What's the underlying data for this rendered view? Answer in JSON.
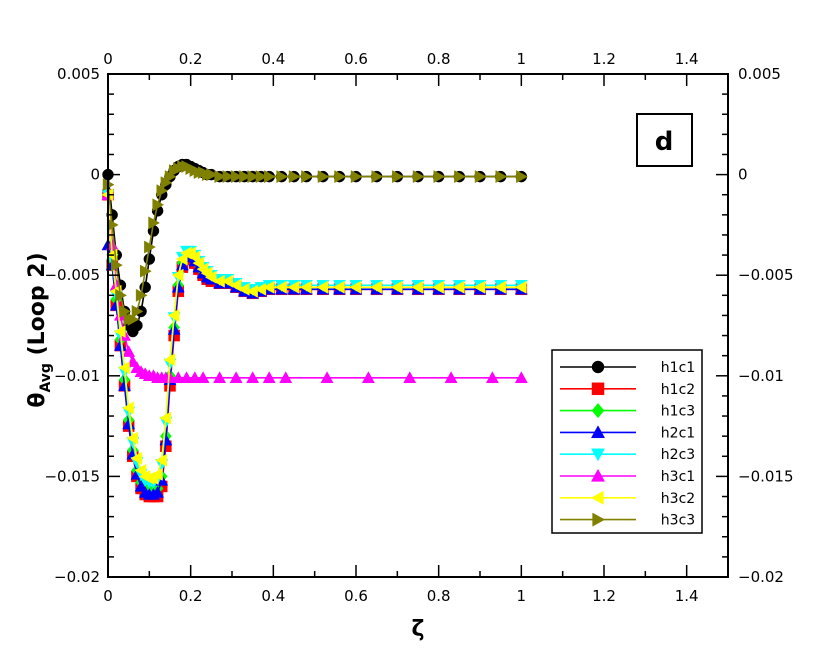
{
  "chart_data": {
    "type": "line",
    "panel_label": "d",
    "xlabel": "ζ",
    "ylabel_main": "θ",
    "ylabel_sub": "Avg",
    "ylabel_rest": " (Loop 2)",
    "xlim": [
      0,
      1.5
    ],
    "ylim": [
      -0.02,
      0.005
    ],
    "x_ticks": [
      0,
      0.2,
      0.4,
      0.6,
      0.8,
      1,
      1.2,
      1.4
    ],
    "x_tick_labels": [
      "0",
      "0.2",
      "0.4",
      "0.6",
      "0.8",
      "1",
      "1.2",
      "1.4"
    ],
    "y_ticks": [
      -0.02,
      -0.015,
      -0.01,
      -0.005,
      0,
      0.005
    ],
    "y_tick_labels": [
      "−0.02",
      "−0.015",
      "−0.01",
      "−0.005",
      "0",
      "0.005"
    ],
    "y_tick_labels_right": [
      "−0.02",
      "−0.015",
      "−0.01",
      "−0.005",
      "0",
      "0.005"
    ],
    "grid": false,
    "legend_position": "bottom-right",
    "series": [
      {
        "name": "h1c1",
        "color": "#000000",
        "marker": "circle",
        "x": [
          0.0,
          0.01,
          0.02,
          0.03,
          0.04,
          0.05,
          0.06,
          0.07,
          0.08,
          0.09,
          0.1,
          0.11,
          0.12,
          0.13,
          0.14,
          0.15,
          0.16,
          0.17,
          0.18,
          0.19,
          0.2,
          0.21,
          0.22,
          0.23,
          0.24,
          0.25,
          0.27,
          0.29,
          0.31,
          0.33,
          0.35,
          0.37,
          0.39,
          0.42,
          0.45,
          0.48,
          0.52,
          0.56,
          0.6,
          0.65,
          0.7,
          0.75,
          0.8,
          0.85,
          0.9,
          0.95,
          1.0
        ],
        "y": [
          0.0,
          -0.002,
          -0.004,
          -0.0055,
          -0.0068,
          -0.0075,
          -0.0078,
          -0.0075,
          -0.0068,
          -0.0056,
          -0.0042,
          -0.0028,
          -0.0018,
          -0.001,
          -0.0005,
          -0.0001,
          0.0002,
          0.0004,
          0.0005,
          0.0005,
          0.0004,
          0.0003,
          0.0002,
          0.0001,
          0.0,
          0.0,
          -0.0001,
          -0.0001,
          -0.0001,
          -0.0001,
          -0.0001,
          -0.0001,
          -0.0001,
          -0.0001,
          -0.0001,
          -0.0001,
          -0.0001,
          -0.0001,
          -0.0001,
          -0.0001,
          -0.0001,
          -0.0001,
          -0.0001,
          -0.0001,
          -0.0001,
          -0.0001,
          -0.0001
        ]
      },
      {
        "name": "h1c2",
        "color": "#ff0000",
        "marker": "square",
        "x": [
          0.0,
          0.01,
          0.02,
          0.03,
          0.04,
          0.05,
          0.06,
          0.07,
          0.08,
          0.09,
          0.1,
          0.11,
          0.12,
          0.13,
          0.14,
          0.15,
          0.16,
          0.17,
          0.18,
          0.19,
          0.2,
          0.21,
          0.22,
          0.23,
          0.24,
          0.25,
          0.27,
          0.29,
          0.31,
          0.33,
          0.35,
          0.37,
          0.39,
          0.42,
          0.45,
          0.48,
          0.52,
          0.56,
          0.6,
          0.65,
          0.7,
          0.75,
          0.8,
          0.85,
          0.9,
          0.95,
          1.0
        ],
        "y": [
          -0.001,
          -0.0045,
          -0.0065,
          -0.0085,
          -0.0105,
          -0.0125,
          -0.014,
          -0.015,
          -0.0156,
          -0.0159,
          -0.016,
          -0.016,
          -0.016,
          -0.0155,
          -0.0135,
          -0.0105,
          -0.008,
          -0.0058,
          -0.0046,
          -0.0042,
          -0.0042,
          -0.0044,
          -0.0047,
          -0.005,
          -0.0052,
          -0.0053,
          -0.0054,
          -0.0054,
          -0.0056,
          -0.0058,
          -0.0059,
          -0.0058,
          -0.0057,
          -0.0057,
          -0.0057,
          -0.0057,
          -0.0057,
          -0.0057,
          -0.0057,
          -0.0057,
          -0.0057,
          -0.0057,
          -0.0057,
          -0.0057,
          -0.0057,
          -0.0057,
          -0.0057
        ]
      },
      {
        "name": "h1c3",
        "color": "#00ff00",
        "marker": "diamond",
        "x": [
          0.0,
          0.01,
          0.02,
          0.03,
          0.04,
          0.05,
          0.06,
          0.07,
          0.08,
          0.09,
          0.1,
          0.11,
          0.12,
          0.13,
          0.14,
          0.15,
          0.16,
          0.17,
          0.18,
          0.19,
          0.2,
          0.21,
          0.22,
          0.23,
          0.24,
          0.25,
          0.27,
          0.29,
          0.31,
          0.33,
          0.35,
          0.37,
          0.39,
          0.42,
          0.45,
          0.48,
          0.52,
          0.56,
          0.6,
          0.65,
          0.7,
          0.75,
          0.8,
          0.85,
          0.9,
          0.95,
          1.0
        ],
        "y": [
          -0.001,
          -0.0042,
          -0.0062,
          -0.0082,
          -0.0102,
          -0.0122,
          -0.0137,
          -0.0147,
          -0.0153,
          -0.0156,
          -0.0157,
          -0.0157,
          -0.0156,
          -0.015,
          -0.013,
          -0.01,
          -0.0076,
          -0.0055,
          -0.0044,
          -0.004,
          -0.004,
          -0.0042,
          -0.0045,
          -0.0048,
          -0.005,
          -0.0051,
          -0.0053,
          -0.0053,
          -0.0055,
          -0.0057,
          -0.0058,
          -0.0057,
          -0.0056,
          -0.0056,
          -0.0056,
          -0.0056,
          -0.0056,
          -0.0056,
          -0.0056,
          -0.0056,
          -0.0056,
          -0.0056,
          -0.0056,
          -0.0056,
          -0.0056,
          -0.0056,
          -0.0056
        ]
      },
      {
        "name": "h2c1",
        "color": "#0000ff",
        "marker": "triangle-up",
        "x": [
          0.0,
          0.01,
          0.02,
          0.03,
          0.04,
          0.05,
          0.06,
          0.07,
          0.08,
          0.09,
          0.1,
          0.11,
          0.12,
          0.13,
          0.14,
          0.15,
          0.16,
          0.17,
          0.18,
          0.19,
          0.2,
          0.21,
          0.22,
          0.23,
          0.24,
          0.25,
          0.27,
          0.29,
          0.31,
          0.33,
          0.35,
          0.37,
          0.39,
          0.42,
          0.45,
          0.48,
          0.52,
          0.56,
          0.6,
          0.65,
          0.7,
          0.75,
          0.8,
          0.85,
          0.9,
          0.95,
          1.0
        ],
        "y": [
          -0.0035,
          -0.0045,
          -0.0065,
          -0.0085,
          -0.0105,
          -0.0124,
          -0.0139,
          -0.0149,
          -0.0155,
          -0.0158,
          -0.0159,
          -0.0159,
          -0.0158,
          -0.0152,
          -0.0132,
          -0.0102,
          -0.0077,
          -0.0056,
          -0.0045,
          -0.0041,
          -0.0041,
          -0.0043,
          -0.0046,
          -0.0049,
          -0.0051,
          -0.0052,
          -0.0054,
          -0.0054,
          -0.0056,
          -0.0058,
          -0.0059,
          -0.0058,
          -0.0057,
          -0.0057,
          -0.0057,
          -0.0057,
          -0.0057,
          -0.0057,
          -0.0057,
          -0.0057,
          -0.0057,
          -0.0057,
          -0.0057,
          -0.0057,
          -0.0057,
          -0.0057,
          -0.0057
        ]
      },
      {
        "name": "h2c3",
        "color": "#00ffff",
        "marker": "triangle-down",
        "x": [
          0.0,
          0.01,
          0.02,
          0.03,
          0.04,
          0.05,
          0.06,
          0.07,
          0.08,
          0.09,
          0.1,
          0.11,
          0.12,
          0.13,
          0.14,
          0.15,
          0.16,
          0.17,
          0.18,
          0.19,
          0.2,
          0.21,
          0.22,
          0.23,
          0.24,
          0.25,
          0.27,
          0.29,
          0.31,
          0.33,
          0.35,
          0.37,
          0.39,
          0.42,
          0.45,
          0.48,
          0.52,
          0.56,
          0.6,
          0.65,
          0.7,
          0.75,
          0.8,
          0.85,
          0.9,
          0.95,
          1.0
        ],
        "y": [
          -0.001,
          -0.0042,
          -0.006,
          -0.008,
          -0.0098,
          -0.0118,
          -0.0133,
          -0.0143,
          -0.0149,
          -0.0152,
          -0.0153,
          -0.0153,
          -0.0151,
          -0.0144,
          -0.0123,
          -0.0094,
          -0.0071,
          -0.0051,
          -0.0041,
          -0.0038,
          -0.0038,
          -0.004,
          -0.0043,
          -0.0046,
          -0.0048,
          -0.005,
          -0.0052,
          -0.0052,
          -0.0054,
          -0.0056,
          -0.0057,
          -0.0056,
          -0.0055,
          -0.0055,
          -0.0055,
          -0.0055,
          -0.0055,
          -0.0055,
          -0.0055,
          -0.0055,
          -0.0055,
          -0.0055,
          -0.0055,
          -0.0055,
          -0.0055,
          -0.0055,
          -0.0055
        ]
      },
      {
        "name": "h3c1",
        "color": "#ff00ff",
        "marker": "triangle-up",
        "x": [
          0.0,
          0.01,
          0.02,
          0.03,
          0.04,
          0.05,
          0.06,
          0.07,
          0.08,
          0.09,
          0.1,
          0.11,
          0.12,
          0.13,
          0.14,
          0.15,
          0.17,
          0.19,
          0.21,
          0.23,
          0.27,
          0.31,
          0.35,
          0.39,
          0.43,
          0.53,
          0.63,
          0.73,
          0.83,
          0.93,
          1.0
        ],
        "y": [
          -0.001,
          -0.0035,
          -0.0055,
          -0.007,
          -0.008,
          -0.0088,
          -0.0093,
          -0.0096,
          -0.0098,
          -0.0099,
          -0.01,
          -0.01,
          -0.0101,
          -0.0101,
          -0.0101,
          -0.0101,
          -0.0101,
          -0.0101,
          -0.0101,
          -0.0101,
          -0.0101,
          -0.0101,
          -0.0101,
          -0.0101,
          -0.0101,
          -0.0101,
          -0.0101,
          -0.0101,
          -0.0101,
          -0.0101,
          -0.0101
        ]
      },
      {
        "name": "h3c2",
        "color": "#ffff00",
        "marker": "triangle-left",
        "x": [
          0.0,
          0.01,
          0.02,
          0.03,
          0.04,
          0.05,
          0.06,
          0.07,
          0.08,
          0.09,
          0.1,
          0.11,
          0.12,
          0.13,
          0.14,
          0.15,
          0.16,
          0.17,
          0.18,
          0.19,
          0.2,
          0.21,
          0.22,
          0.23,
          0.24,
          0.25,
          0.27,
          0.29,
          0.31,
          0.33,
          0.35,
          0.37,
          0.39,
          0.42,
          0.45,
          0.48,
          0.52,
          0.56,
          0.6,
          0.65,
          0.7,
          0.75,
          0.8,
          0.85,
          0.9,
          0.95,
          1.0
        ],
        "y": [
          -0.001,
          -0.004,
          -0.0058,
          -0.0078,
          -0.0096,
          -0.0116,
          -0.0131,
          -0.0141,
          -0.0147,
          -0.015,
          -0.0151,
          -0.0151,
          -0.0149,
          -0.0142,
          -0.0121,
          -0.0092,
          -0.007,
          -0.005,
          -0.0042,
          -0.0039,
          -0.0039,
          -0.0041,
          -0.0044,
          -0.0047,
          -0.0049,
          -0.0051,
          -0.0053,
          -0.0053,
          -0.0055,
          -0.0057,
          -0.0058,
          -0.0057,
          -0.0056,
          -0.0056,
          -0.0056,
          -0.0056,
          -0.0056,
          -0.0056,
          -0.0056,
          -0.0056,
          -0.0056,
          -0.0056,
          -0.0056,
          -0.0056,
          -0.0056,
          -0.0056,
          -0.0056
        ]
      },
      {
        "name": "h3c3",
        "color": "#808000",
        "marker": "triangle-right",
        "x": [
          0.0,
          0.01,
          0.02,
          0.03,
          0.04,
          0.05,
          0.06,
          0.07,
          0.08,
          0.09,
          0.1,
          0.11,
          0.12,
          0.13,
          0.14,
          0.15,
          0.16,
          0.17,
          0.18,
          0.19,
          0.2,
          0.21,
          0.22,
          0.23,
          0.24,
          0.25,
          0.27,
          0.29,
          0.31,
          0.33,
          0.35,
          0.37,
          0.39,
          0.42,
          0.45,
          0.48,
          0.52,
          0.56,
          0.6,
          0.65,
          0.7,
          0.75,
          0.8,
          0.85,
          0.9,
          0.95,
          1.0
        ],
        "y": [
          -0.0005,
          -0.0025,
          -0.0045,
          -0.006,
          -0.0068,
          -0.0072,
          -0.0072,
          -0.0068,
          -0.006,
          -0.0048,
          -0.0036,
          -0.0024,
          -0.0015,
          -0.0008,
          -0.0004,
          -0.0001,
          0.0002,
          0.0003,
          0.0004,
          0.0004,
          0.0003,
          0.0002,
          0.0001,
          0.0001,
          0.0,
          0.0,
          -0.0001,
          -0.0001,
          -0.0001,
          -0.0001,
          -0.0001,
          -0.0001,
          -0.0001,
          -0.0001,
          -0.0001,
          -0.0001,
          -0.0001,
          -0.0001,
          -0.0001,
          -0.0001,
          -0.0001,
          -0.0001,
          -0.0001,
          -0.0001,
          -0.0001,
          -0.0001,
          -0.0001
        ]
      }
    ]
  }
}
